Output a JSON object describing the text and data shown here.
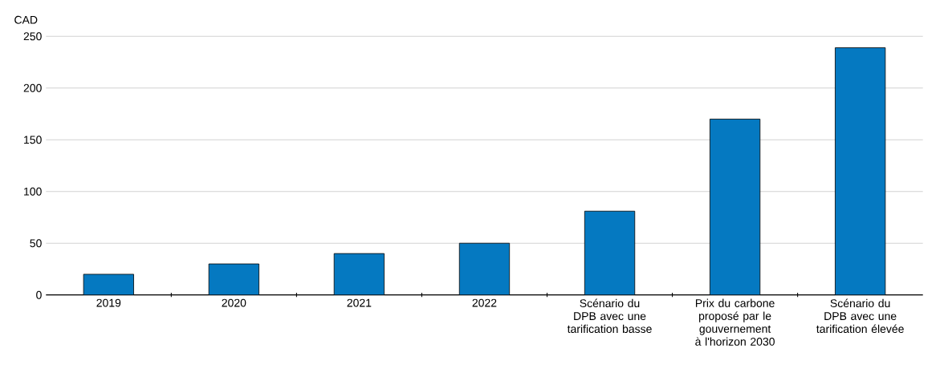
{
  "chart_data": {
    "type": "bar",
    "ylabel": "CAD",
    "categories": [
      "2019",
      "2020",
      "2021",
      "2022",
      "Scénario du DPB avec une tarification basse",
      "Prix du carbone proposé par le gouvernement à l'horizon 2030",
      "Scénario du DPB avec une tarification élevée"
    ],
    "values": [
      20,
      30,
      40,
      50,
      81,
      170,
      239
    ],
    "color": "#0579c1",
    "ylim": [
      0,
      250
    ],
    "yticks": [
      0,
      50,
      100,
      150,
      200,
      250
    ],
    "grid": "y"
  }
}
